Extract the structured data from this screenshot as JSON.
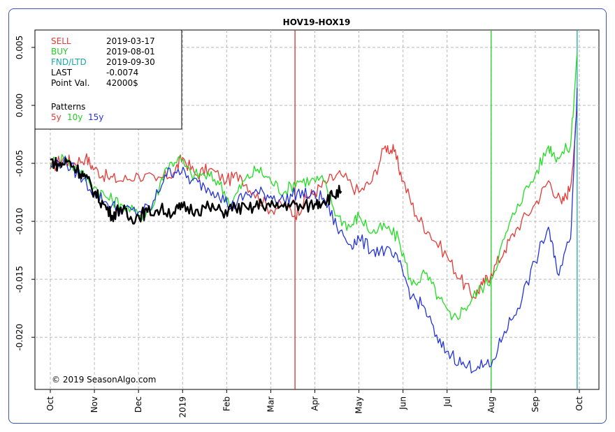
{
  "chart_data": {
    "type": "line",
    "title": "HOV19-HOX19",
    "xlabel": "",
    "ylabel": "",
    "ylim": [
      -0.0245,
      0.0065
    ],
    "x_ticks": [
      "Oct",
      "Nov",
      "Dec",
      "2019",
      "Feb",
      "Mar",
      "Apr",
      "May",
      "Jun",
      "Jul",
      "Aug",
      "Sep",
      "Oct"
    ],
    "y_ticks": [
      0.005,
      0.0,
      -0.005,
      -0.01,
      -0.015,
      -0.02
    ],
    "y_tick_labels": [
      "0.005",
      "0.000",
      "-0.005",
      "-0.010",
      "-0.015",
      "-0.020"
    ],
    "grid": true,
    "info_box": {
      "sell_label": "SELL",
      "sell_date": "2019-03-17",
      "buy_label": "BUY",
      "buy_date": "2019-08-01",
      "fnd_label": "FND/LTD",
      "fnd_date": "2019-09-30",
      "last_label": "LAST",
      "last_value": "-0.0074",
      "pointval_label": "Point Val.",
      "pointval_value": "42000$",
      "patterns_label": "Patterns",
      "p5": "5y",
      "p10": "10y",
      "p15": "15y"
    },
    "markers": [
      {
        "label": "SELL",
        "month": 5.55,
        "color": "#d32f2f"
      },
      {
        "label": "BUY",
        "month": 10.0,
        "color": "#22cc22"
      },
      {
        "label": "FND/LTD",
        "month": 11.95,
        "color": "#1aa8a8"
      }
    ],
    "series": [
      {
        "name": "5y",
        "color": "#e53935",
        "x": [
          0,
          0.3,
          0.5,
          0.8,
          1.0,
          1.3,
          1.6,
          2.0,
          2.4,
          2.8,
          3.0,
          3.3,
          3.6,
          4.0,
          4.3,
          4.6,
          5.0,
          5.3,
          5.55,
          5.8,
          6.0,
          6.3,
          6.6,
          7.0,
          7.3,
          7.6,
          7.8,
          8.0,
          8.3,
          8.6,
          9.0,
          9.3,
          9.6,
          9.8,
          10.0,
          10.3,
          10.6,
          11.0,
          11.3,
          11.6,
          11.8,
          11.95
        ],
        "y": [
          -0.0055,
          -0.0045,
          -0.005,
          -0.0045,
          -0.0055,
          -0.0062,
          -0.0065,
          -0.006,
          -0.0065,
          -0.0058,
          -0.0045,
          -0.006,
          -0.0055,
          -0.0065,
          -0.006,
          -0.0075,
          -0.009,
          -0.0085,
          -0.0095,
          -0.008,
          -0.0075,
          -0.0065,
          -0.006,
          -0.0075,
          -0.0065,
          -0.0035,
          -0.004,
          -0.0065,
          -0.0095,
          -0.011,
          -0.013,
          -0.015,
          -0.0165,
          -0.0155,
          -0.0145,
          -0.0125,
          -0.0105,
          -0.0085,
          -0.0065,
          -0.0085,
          -0.007,
          -0.0005
        ]
      },
      {
        "name": "10y",
        "color": "#22dd22",
        "x": [
          0,
          0.3,
          0.6,
          1.0,
          1.3,
          1.6,
          2.0,
          2.3,
          2.6,
          2.9,
          3.2,
          3.5,
          3.8,
          4.1,
          4.4,
          4.7,
          5.0,
          5.3,
          5.6,
          5.9,
          6.2,
          6.5,
          6.8,
          7.0,
          7.3,
          7.6,
          7.9,
          8.2,
          8.5,
          8.8,
          9.1,
          9.4,
          9.7,
          10.0,
          10.3,
          10.6,
          11.0,
          11.3,
          11.5,
          11.8,
          11.95
        ],
        "y": [
          -0.005,
          -0.0045,
          -0.0055,
          -0.007,
          -0.008,
          -0.0085,
          -0.0095,
          -0.009,
          -0.0055,
          -0.0045,
          -0.006,
          -0.006,
          -0.0065,
          -0.0085,
          -0.0065,
          -0.0055,
          -0.0065,
          -0.0075,
          -0.0065,
          -0.0065,
          -0.0065,
          -0.0095,
          -0.0105,
          -0.0095,
          -0.011,
          -0.0105,
          -0.0115,
          -0.0155,
          -0.0145,
          -0.0165,
          -0.0185,
          -0.0175,
          -0.016,
          -0.015,
          -0.0115,
          -0.0085,
          -0.006,
          -0.0035,
          -0.0045,
          -0.0035,
          0.0045
        ]
      },
      {
        "name": "15y",
        "color": "#2233dd",
        "x": [
          0,
          0.3,
          0.6,
          1.0,
          1.3,
          1.6,
          2.0,
          2.3,
          2.6,
          2.9,
          3.2,
          3.5,
          3.8,
          4.1,
          4.4,
          4.7,
          5.0,
          5.3,
          5.6,
          5.9,
          6.2,
          6.5,
          6.8,
          7.0,
          7.3,
          7.6,
          7.9,
          8.2,
          8.5,
          8.8,
          9.1,
          9.4,
          9.7,
          10.0,
          10.3,
          10.6,
          11.0,
          11.3,
          11.5,
          11.8,
          11.95
        ],
        "y": [
          -0.0052,
          -0.0048,
          -0.0058,
          -0.0075,
          -0.0085,
          -0.009,
          -0.0092,
          -0.0088,
          -0.006,
          -0.0055,
          -0.0065,
          -0.007,
          -0.0075,
          -0.0088,
          -0.0078,
          -0.0075,
          -0.0078,
          -0.0082,
          -0.0075,
          -0.0078,
          -0.008,
          -0.0105,
          -0.012,
          -0.0115,
          -0.0125,
          -0.0125,
          -0.0135,
          -0.0165,
          -0.0175,
          -0.0205,
          -0.0215,
          -0.0225,
          -0.0225,
          -0.0225,
          -0.0195,
          -0.0175,
          -0.0135,
          -0.0105,
          -0.0145,
          -0.0115,
          0.0015
        ]
      },
      {
        "name": "",
        "color": "#000000",
        "x": [
          0,
          0.2,
          0.4,
          0.6,
          0.8,
          1.0,
          1.2,
          1.4,
          1.6,
          1.8,
          2.0,
          2.2,
          2.5,
          2.8,
          3.0,
          3.3,
          3.6,
          3.9,
          4.2,
          4.5,
          4.8,
          5.1,
          5.4,
          5.7,
          6.0,
          6.2,
          6.4,
          6.6
        ],
        "y": [
          -0.0047,
          -0.0052,
          -0.0048,
          -0.0055,
          -0.0062,
          -0.0075,
          -0.0085,
          -0.0095,
          -0.0088,
          -0.0098,
          -0.0095,
          -0.0092,
          -0.009,
          -0.0092,
          -0.0088,
          -0.009,
          -0.0088,
          -0.0092,
          -0.0088,
          -0.009,
          -0.0085,
          -0.0088,
          -0.0085,
          -0.0088,
          -0.0085,
          -0.0082,
          -0.0078,
          -0.0074
        ]
      }
    ],
    "copyright": "© 2019 SeasonAlgo.com"
  }
}
